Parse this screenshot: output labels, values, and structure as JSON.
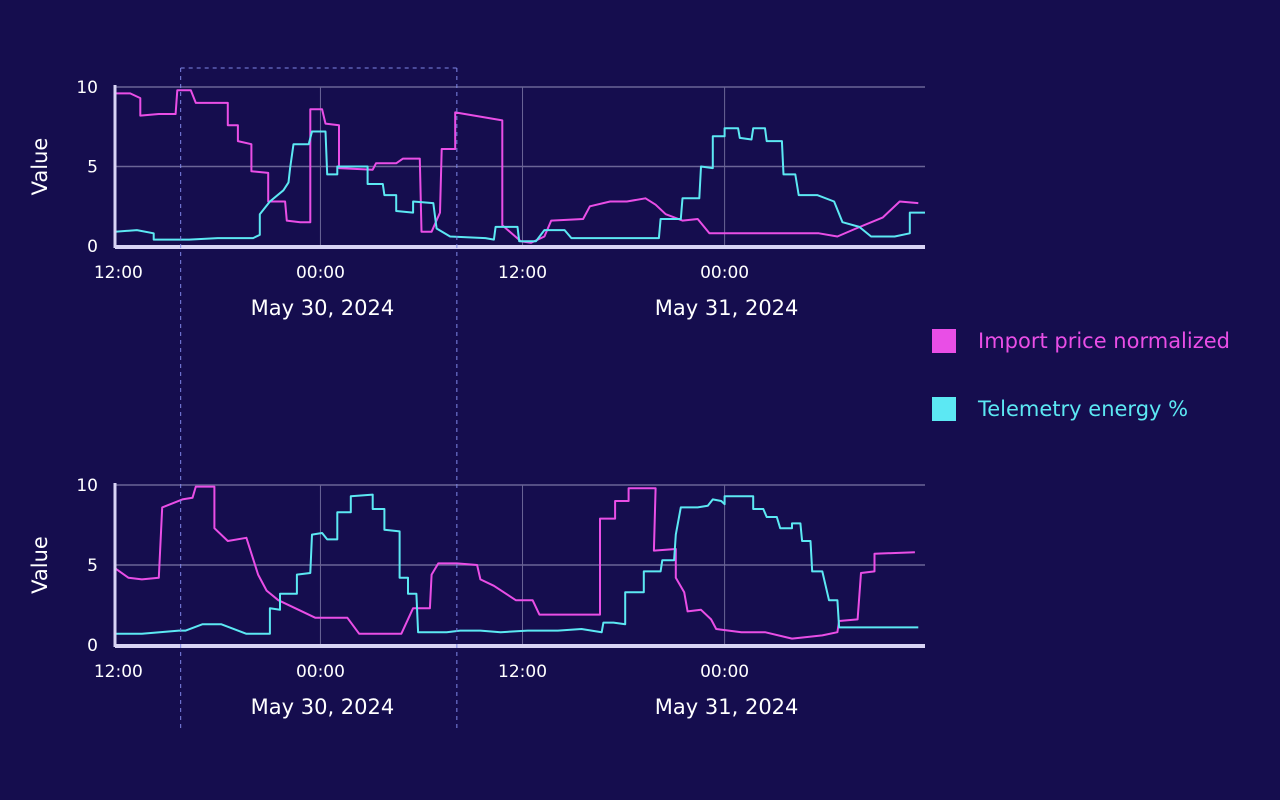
{
  "colors": {
    "background": "#150d4e",
    "import": "#e94ee6",
    "telemetry": "#5ce8f3",
    "grid": "#6a6596",
    "axis": "#d8d4f5",
    "crosshair": "#7e86e6"
  },
  "legend": [
    {
      "label": "Import price normalized",
      "color": "#e94ee6"
    },
    {
      "label": "Telemetry energy %",
      "color": "#5ce8f3"
    }
  ],
  "chart_data": [
    {
      "type": "line",
      "ylabel": "Value",
      "ylim": [
        0,
        10
      ],
      "yticks": [
        "0",
        "5",
        "10"
      ],
      "x_unit": "hours since May 29, 2024 12:00",
      "xlim": [
        -0.2,
        47.9
      ],
      "xticks": [
        {
          "h": 0,
          "label": "12:00"
        },
        {
          "h": 12,
          "label": "00:00",
          "date": "May 30, 2024"
        },
        {
          "h": 24,
          "label": "12:00"
        },
        {
          "h": 36,
          "label": "00:00",
          "date": "May 31, 2024"
        }
      ],
      "grid": true,
      "crosshair_hours": [
        3.7,
        20.1
      ],
      "series": [
        {
          "name": "Import price normalized",
          "points": [
            [
              -0.2,
              9.6
            ],
            [
              0.7,
              9.6
            ],
            [
              1.3,
              9.3
            ],
            [
              1.3,
              8.2
            ],
            [
              2.4,
              8.3
            ],
            [
              3.4,
              8.3
            ],
            [
              3.5,
              9.8
            ],
            [
              4.3,
              9.8
            ],
            [
              4.6,
              9.0
            ],
            [
              6.5,
              9.0
            ],
            [
              6.5,
              7.6
            ],
            [
              7.1,
              7.6
            ],
            [
              7.1,
              6.6
            ],
            [
              7.9,
              6.4
            ],
            [
              7.9,
              4.7
            ],
            [
              8.9,
              4.6
            ],
            [
              8.9,
              2.8
            ],
            [
              9.9,
              2.8
            ],
            [
              10.0,
              1.6
            ],
            [
              10.8,
              1.5
            ],
            [
              11.4,
              1.5
            ],
            [
              11.4,
              8.6
            ],
            [
              12.1,
              8.6
            ],
            [
              12.3,
              7.7
            ],
            [
              13.1,
              7.6
            ],
            [
              13.1,
              4.9
            ],
            [
              15.1,
              4.8
            ],
            [
              15.3,
              5.2
            ],
            [
              16.5,
              5.2
            ],
            [
              16.9,
              5.5
            ],
            [
              17.9,
              5.5
            ],
            [
              18.0,
              0.9
            ],
            [
              18.6,
              0.9
            ],
            [
              19.1,
              2.1
            ],
            [
              19.2,
              6.1
            ],
            [
              20.0,
              6.1
            ],
            [
              20.0,
              8.4
            ],
            [
              22.8,
              7.9
            ],
            [
              22.8,
              1.3
            ],
            [
              23.9,
              0.3
            ],
            [
              24.5,
              0.2
            ],
            [
              25.3,
              0.6
            ],
            [
              25.7,
              1.6
            ],
            [
              27.6,
              1.7
            ],
            [
              28.0,
              2.5
            ],
            [
              29.2,
              2.8
            ],
            [
              30.2,
              2.8
            ],
            [
              31.3,
              3.0
            ],
            [
              31.9,
              2.6
            ],
            [
              32.5,
              2.0
            ],
            [
              33.5,
              1.6
            ],
            [
              34.4,
              1.7
            ],
            [
              35.1,
              0.8
            ],
            [
              38.7,
              0.8
            ],
            [
              41.6,
              0.8
            ],
            [
              42.7,
              0.6
            ],
            [
              43.8,
              1.1
            ],
            [
              45.4,
              1.8
            ],
            [
              46.4,
              2.8
            ],
            [
              47.5,
              2.7
            ]
          ]
        },
        {
          "name": "Telemetry energy %",
          "points": [
            [
              -0.2,
              0.9
            ],
            [
              1.1,
              1.0
            ],
            [
              2.1,
              0.8
            ],
            [
              2.1,
              0.4
            ],
            [
              4.2,
              0.4
            ],
            [
              5.9,
              0.5
            ],
            [
              8.0,
              0.5
            ],
            [
              8.4,
              0.7
            ],
            [
              8.4,
              2.0
            ],
            [
              9.0,
              2.8
            ],
            [
              9.8,
              3.5
            ],
            [
              10.1,
              4.0
            ],
            [
              10.2,
              4.9
            ],
            [
              10.4,
              6.4
            ],
            [
              11.3,
              6.4
            ],
            [
              11.5,
              7.2
            ],
            [
              12.3,
              7.2
            ],
            [
              12.4,
              4.5
            ],
            [
              13.0,
              4.5
            ],
            [
              13.0,
              5.0
            ],
            [
              14.8,
              5.0
            ],
            [
              14.8,
              3.9
            ],
            [
              15.7,
              3.9
            ],
            [
              15.8,
              3.2
            ],
            [
              16.5,
              3.2
            ],
            [
              16.5,
              2.2
            ],
            [
              17.5,
              2.1
            ],
            [
              17.5,
              2.8
            ],
            [
              18.7,
              2.7
            ],
            [
              18.9,
              1.1
            ],
            [
              19.7,
              0.6
            ],
            [
              21.8,
              0.5
            ],
            [
              22.3,
              0.4
            ],
            [
              22.4,
              1.2
            ],
            [
              23.7,
              1.2
            ],
            [
              23.8,
              0.3
            ],
            [
              24.8,
              0.3
            ],
            [
              25.3,
              1.0
            ],
            [
              26.5,
              1.0
            ],
            [
              26.9,
              0.5
            ],
            [
              32.1,
              0.5
            ],
            [
              32.2,
              1.7
            ],
            [
              33.4,
              1.7
            ],
            [
              33.5,
              3.0
            ],
            [
              34.5,
              3.0
            ],
            [
              34.6,
              5.0
            ],
            [
              35.3,
              4.9
            ],
            [
              35.3,
              6.9
            ],
            [
              36.0,
              6.9
            ],
            [
              36.0,
              7.4
            ],
            [
              36.8,
              7.4
            ],
            [
              36.9,
              6.8
            ],
            [
              37.6,
              6.7
            ],
            [
              37.7,
              7.4
            ],
            [
              38.4,
              7.4
            ],
            [
              38.5,
              6.6
            ],
            [
              39.4,
              6.6
            ],
            [
              39.5,
              4.5
            ],
            [
              40.2,
              4.5
            ],
            [
              40.4,
              3.2
            ],
            [
              41.5,
              3.2
            ],
            [
              42.5,
              2.8
            ],
            [
              43.0,
              1.5
            ],
            [
              44.0,
              1.2
            ],
            [
              44.7,
              0.6
            ],
            [
              46.1,
              0.6
            ],
            [
              47.0,
              0.8
            ],
            [
              47.0,
              2.1
            ],
            [
              47.9,
              2.1
            ]
          ]
        }
      ]
    },
    {
      "type": "line",
      "ylabel": "Value",
      "ylim": [
        0,
        10
      ],
      "yticks": [
        "0",
        "5",
        "10"
      ],
      "x_unit": "hours since May 29, 2024 12:00",
      "xlim": [
        -0.2,
        47.9
      ],
      "xticks": [
        {
          "h": 0,
          "label": "12:00"
        },
        {
          "h": 12,
          "label": "00:00",
          "date": "May 30, 2024"
        },
        {
          "h": 24,
          "label": "12:00"
        },
        {
          "h": 36,
          "label": "00:00",
          "date": "May 31, 2024"
        }
      ],
      "grid": true,
      "crosshair_hours": [
        3.7,
        20.1
      ],
      "series": [
        {
          "name": "Import price normalized",
          "points": [
            [
              -0.2,
              4.8
            ],
            [
              0.6,
              4.2
            ],
            [
              1.4,
              4.1
            ],
            [
              2.4,
              4.2
            ],
            [
              2.6,
              8.6
            ],
            [
              3.8,
              9.1
            ],
            [
              4.4,
              9.2
            ],
            [
              4.6,
              9.9
            ],
            [
              5.7,
              9.9
            ],
            [
              5.7,
              7.3
            ],
            [
              6.5,
              6.5
            ],
            [
              7.6,
              6.7
            ],
            [
              8.3,
              4.4
            ],
            [
              8.8,
              3.4
            ],
            [
              9.5,
              2.8
            ],
            [
              10.7,
              2.2
            ],
            [
              11.7,
              1.7
            ],
            [
              13.6,
              1.7
            ],
            [
              14.3,
              0.7
            ],
            [
              16.8,
              0.7
            ],
            [
              17.5,
              2.3
            ],
            [
              18.5,
              2.3
            ],
            [
              18.6,
              4.4
            ],
            [
              19.0,
              5.1
            ],
            [
              20.1,
              5.1
            ],
            [
              21.3,
              5.0
            ],
            [
              21.5,
              4.1
            ],
            [
              22.3,
              3.7
            ],
            [
              23.6,
              2.8
            ],
            [
              24.6,
              2.8
            ],
            [
              25.0,
              1.9
            ],
            [
              28.6,
              1.9
            ],
            [
              28.6,
              7.9
            ],
            [
              29.5,
              7.9
            ],
            [
              29.5,
              9.0
            ],
            [
              30.3,
              9.0
            ],
            [
              30.3,
              9.8
            ],
            [
              31.9,
              9.8
            ],
            [
              31.8,
              5.9
            ],
            [
              33.1,
              6.0
            ],
            [
              33.1,
              4.2
            ],
            [
              33.6,
              3.3
            ],
            [
              33.8,
              2.1
            ],
            [
              34.6,
              2.2
            ],
            [
              35.2,
              1.6
            ],
            [
              35.5,
              1.0
            ],
            [
              37.0,
              0.8
            ],
            [
              38.4,
              0.8
            ],
            [
              40.0,
              0.4
            ],
            [
              41.8,
              0.6
            ],
            [
              42.7,
              0.8
            ],
            [
              42.8,
              1.5
            ],
            [
              43.9,
              1.6
            ],
            [
              44.1,
              4.5
            ],
            [
              44.9,
              4.6
            ],
            [
              44.9,
              5.7
            ],
            [
              47.3,
              5.8
            ]
          ]
        },
        {
          "name": "Telemetry energy %",
          "points": [
            [
              -0.2,
              0.7
            ],
            [
              1.4,
              0.7
            ],
            [
              3.6,
              0.9
            ],
            [
              4.0,
              0.9
            ],
            [
              5.0,
              1.3
            ],
            [
              6.1,
              1.3
            ],
            [
              7.6,
              0.7
            ],
            [
              9.0,
              0.7
            ],
            [
              9.0,
              2.3
            ],
            [
              9.6,
              2.2
            ],
            [
              9.6,
              3.2
            ],
            [
              10.6,
              3.2
            ],
            [
              10.6,
              4.4
            ],
            [
              11.4,
              4.5
            ],
            [
              11.5,
              6.9
            ],
            [
              12.1,
              7.0
            ],
            [
              12.4,
              6.6
            ],
            [
              13.0,
              6.6
            ],
            [
              13.0,
              8.3
            ],
            [
              13.8,
              8.3
            ],
            [
              13.8,
              9.3
            ],
            [
              15.1,
              9.4
            ],
            [
              15.1,
              8.5
            ],
            [
              15.8,
              8.5
            ],
            [
              15.8,
              7.2
            ],
            [
              16.7,
              7.1
            ],
            [
              16.7,
              4.2
            ],
            [
              17.2,
              4.2
            ],
            [
              17.2,
              3.2
            ],
            [
              17.7,
              3.2
            ],
            [
              17.8,
              0.8
            ],
            [
              19.5,
              0.8
            ],
            [
              20.3,
              0.9
            ],
            [
              21.5,
              0.9
            ],
            [
              22.7,
              0.8
            ],
            [
              24.3,
              0.9
            ],
            [
              26.1,
              0.9
            ],
            [
              27.5,
              1.0
            ],
            [
              28.7,
              0.8
            ],
            [
              28.8,
              1.4
            ],
            [
              29.4,
              1.4
            ],
            [
              30.1,
              1.3
            ],
            [
              30.1,
              3.3
            ],
            [
              31.2,
              3.3
            ],
            [
              31.2,
              4.6
            ],
            [
              32.2,
              4.6
            ],
            [
              32.3,
              5.3
            ],
            [
              33.0,
              5.3
            ],
            [
              33.1,
              6.9
            ],
            [
              33.4,
              8.6
            ],
            [
              34.4,
              8.6
            ],
            [
              35.0,
              8.7
            ],
            [
              35.3,
              9.1
            ],
            [
              35.8,
              9.0
            ],
            [
              36.0,
              8.8
            ],
            [
              36.0,
              9.3
            ],
            [
              37.7,
              9.3
            ],
            [
              37.7,
              8.5
            ],
            [
              38.3,
              8.5
            ],
            [
              38.5,
              8.0
            ],
            [
              39.1,
              8.0
            ],
            [
              39.3,
              7.3
            ],
            [
              40.0,
              7.3
            ],
            [
              40.0,
              7.6
            ],
            [
              40.5,
              7.6
            ],
            [
              40.6,
              6.5
            ],
            [
              41.1,
              6.5
            ],
            [
              41.2,
              4.6
            ],
            [
              41.8,
              4.6
            ],
            [
              42.2,
              2.8
            ],
            [
              42.7,
              2.8
            ],
            [
              42.8,
              1.1
            ],
            [
              47.5,
              1.1
            ]
          ]
        }
      ]
    }
  ]
}
